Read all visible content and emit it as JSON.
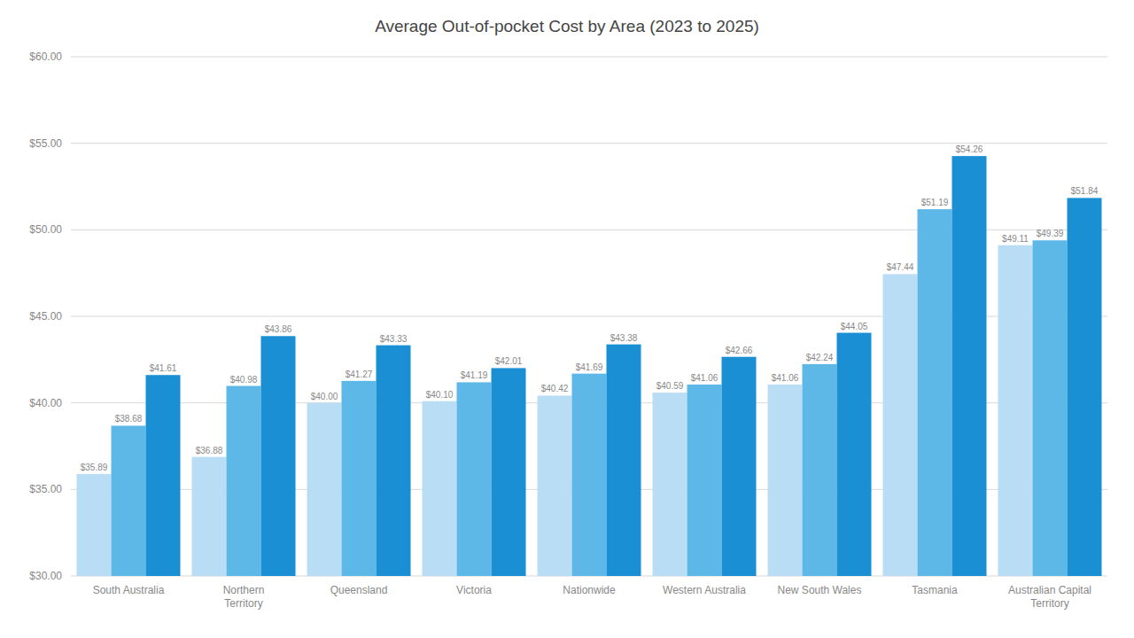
{
  "chart_data": {
    "type": "bar",
    "title": "Average Out-of-pocket Cost by Area (2023 to 2025)",
    "categories": [
      "South Australia",
      "Northern\nTerritory",
      "Queensland",
      "Victoria",
      "Nationwide",
      "Western Australia",
      "New South Wales",
      "Tasmania",
      "Australian Capital\nTerritory"
    ],
    "series": [
      {
        "color": "#b8ddf5",
        "values": [
          35.89,
          36.88,
          40.0,
          40.1,
          40.42,
          40.59,
          41.06,
          47.44,
          49.11
        ],
        "value_labels": [
          "$35.89",
          "$36.88",
          "$40.00",
          "$40.10",
          "$40.42",
          "$40.59",
          "$41.06",
          "$47.44",
          "$49.11"
        ]
      },
      {
        "color": "#5db8e8",
        "values": [
          38.68,
          40.98,
          41.27,
          41.19,
          41.69,
          41.06,
          42.24,
          51.19,
          49.39
        ],
        "value_labels": [
          "$38.68",
          "$40.98",
          "$41.27",
          "$41.19",
          "$41.69",
          "$41.06",
          "$42.24",
          "$51.19",
          "$49.39"
        ]
      },
      {
        "color": "#1b8fd4",
        "values": [
          41.61,
          43.86,
          43.33,
          42.01,
          43.38,
          42.66,
          44.05,
          54.26,
          51.84
        ],
        "value_labels": [
          "$41.61",
          "$43.86",
          "$43.33",
          "$42.01",
          "$43.38",
          "$42.66",
          "$44.05",
          "$54.26",
          "$51.84"
        ]
      }
    ],
    "ylim": [
      30,
      60
    ],
    "yticks": [
      {
        "value": 30,
        "label": "$30.00"
      },
      {
        "value": 35,
        "label": "$35.00"
      },
      {
        "value": 40,
        "label": "$40.00"
      },
      {
        "value": 45,
        "label": "$45.00"
      },
      {
        "value": 50,
        "label": "$50.00"
      },
      {
        "value": 55,
        "label": "$55.00"
      },
      {
        "value": 60,
        "label": "$60.00"
      }
    ],
    "grid": true,
    "data_labels": true
  }
}
